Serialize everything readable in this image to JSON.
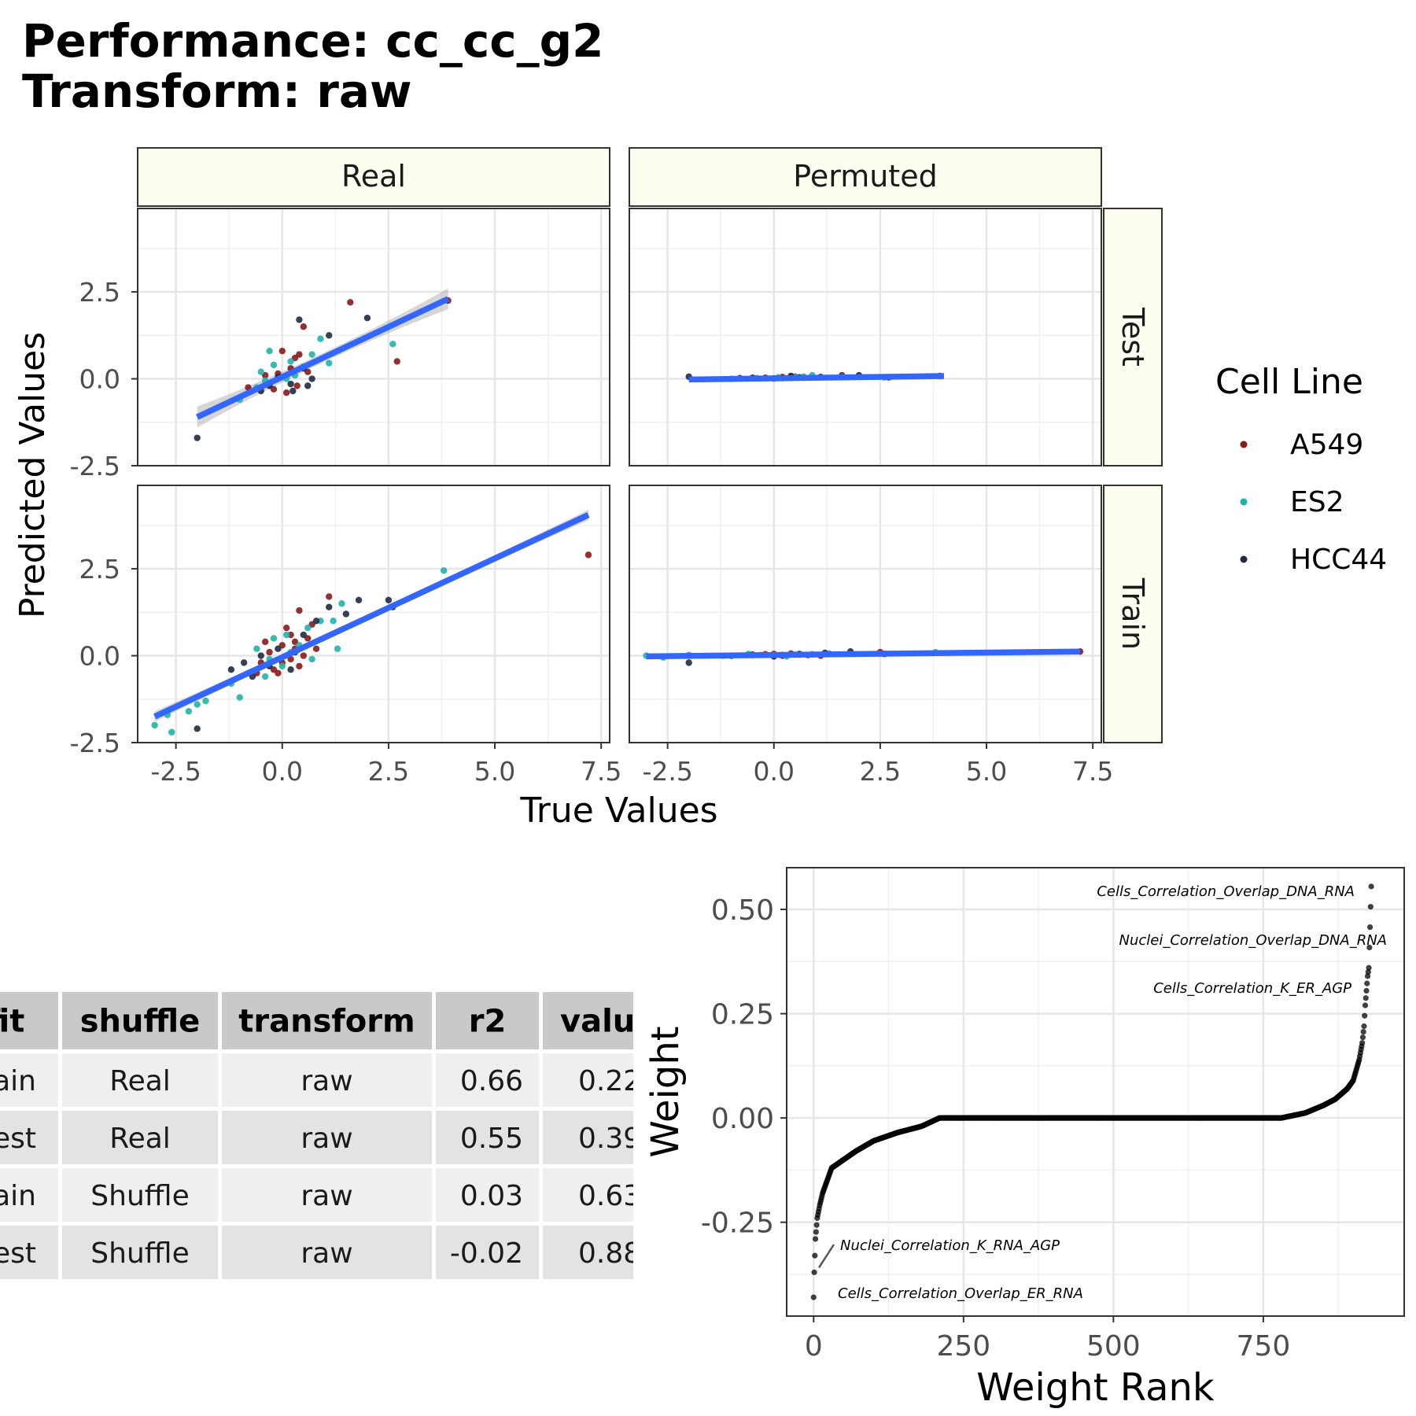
{
  "title_line1": "Performance: cc_cc_g2",
  "title_line2": "Transform: raw",
  "colors": {
    "A549": "#8B1A1A",
    "ES2": "#20B2AA",
    "HCC44": "#1F2A44",
    "fit": "#3366FF",
    "strip_bg": "#FDFDF0",
    "table_header": "#C9C9C9",
    "row_light": "#EFEFEF",
    "row_dark": "#E3E3E3"
  },
  "chart_data": [
    {
      "type": "scatter",
      "facets": {
        "cols": [
          "Real",
          "Permuted"
        ],
        "rows": [
          "Test",
          "Train"
        ]
      },
      "xlabel": "True Values",
      "ylabel": "Predicted Values",
      "xlim": [
        -3.4,
        7.7
      ],
      "ylim": [
        -2.5,
        4.9
      ],
      "x_ticks": [
        "-2.5",
        "0.0",
        "2.5",
        "5.0",
        "7.5"
      ],
      "y_ticks": [
        "-2.5",
        "0.0",
        "2.5"
      ],
      "legend": {
        "title": "Cell Line",
        "entries": [
          "A549",
          "ES2",
          "HCC44"
        ],
        "position": "right"
      },
      "fit_lines": {
        "Real_Test": {
          "x": [
            -2.0,
            3.9
          ],
          "y": [
            -1.1,
            2.3
          ],
          "se": 0.3
        },
        "Permuted_Test": {
          "x": [
            -2.0,
            4.0
          ],
          "y": [
            -0.02,
            0.08
          ],
          "se": 0.02
        },
        "Real_Train": {
          "x": [
            -3.0,
            7.2
          ],
          "y": [
            -1.75,
            4.05
          ],
          "se": 0.15
        },
        "Permuted_Train": {
          "x": [
            -3.0,
            7.2
          ],
          "y": [
            -0.02,
            0.12
          ],
          "se": 0.02
        }
      },
      "panels": {
        "Real_Test": {
          "A549": [
            [
              -0.8,
              -0.25
            ],
            [
              -0.4,
              0.1
            ],
            [
              -0.1,
              0.15
            ],
            [
              0.0,
              0.8
            ],
            [
              0.2,
              0.3
            ],
            [
              0.3,
              0.6
            ],
            [
              0.4,
              0.7
            ],
            [
              0.5,
              1.5
            ],
            [
              0.6,
              0.2
            ],
            [
              1.6,
              2.2
            ],
            [
              2.7,
              0.5
            ],
            [
              3.9,
              2.25
            ],
            [
              0.1,
              -0.4
            ],
            [
              -0.2,
              -0.3
            ],
            [
              0.35,
              -0.2
            ]
          ],
          "ES2": [
            [
              -1.0,
              -0.6
            ],
            [
              -0.5,
              0.2
            ],
            [
              -0.4,
              -0.05
            ],
            [
              -0.3,
              0.8
            ],
            [
              -0.2,
              0.4
            ],
            [
              0.1,
              0.0
            ],
            [
              0.2,
              0.5
            ],
            [
              0.5,
              0.35
            ],
            [
              0.7,
              0.7
            ],
            [
              0.9,
              1.15
            ],
            [
              1.1,
              0.45
            ],
            [
              2.6,
              1.0
            ],
            [
              -0.6,
              -0.25
            ],
            [
              0.3,
              0.1
            ]
          ],
          "HCC44": [
            [
              -2.0,
              -1.7
            ],
            [
              -0.5,
              -0.35
            ],
            [
              -0.3,
              -0.2
            ],
            [
              0.2,
              -0.15
            ],
            [
              0.4,
              1.7
            ],
            [
              0.5,
              0.3
            ],
            [
              0.6,
              -0.2
            ],
            [
              0.7,
              0.0
            ],
            [
              1.1,
              1.25
            ],
            [
              2.0,
              1.75
            ],
            [
              -0.1,
              0.05
            ],
            [
              0.25,
              -0.35
            ]
          ]
        },
        "Permuted_Test": {
          "A549": [
            [
              -0.8,
              0.02
            ],
            [
              -0.2,
              0.03
            ],
            [
              0.0,
              0.01
            ],
            [
              0.2,
              0.05
            ],
            [
              0.4,
              0.08
            ],
            [
              0.5,
              0.06
            ],
            [
              1.6,
              0.1
            ],
            [
              2.7,
              0.04
            ],
            [
              3.9,
              0.08
            ]
          ],
          "ES2": [
            [
              -1.0,
              0.0
            ],
            [
              -0.4,
              0.02
            ],
            [
              0.1,
              0.04
            ],
            [
              0.5,
              0.05
            ],
            [
              0.7,
              0.06
            ],
            [
              0.9,
              0.1
            ],
            [
              1.1,
              0.05
            ],
            [
              2.6,
              0.04
            ]
          ],
          "HCC44": [
            [
              -2.0,
              0.06
            ],
            [
              -0.5,
              0.03
            ],
            [
              0.2,
              0.02
            ],
            [
              0.4,
              0.07
            ],
            [
              0.6,
              0.04
            ],
            [
              1.1,
              0.05
            ],
            [
              2.0,
              0.1
            ]
          ]
        },
        "Real_Train": {
          "A549": [
            [
              -0.5,
              -0.2
            ],
            [
              -0.3,
              0.1
            ],
            [
              -0.2,
              -0.4
            ],
            [
              0.0,
              0.3
            ],
            [
              0.1,
              0.8
            ],
            [
              0.2,
              -0.1
            ],
            [
              0.3,
              0.4
            ],
            [
              0.4,
              1.3
            ],
            [
              0.5,
              0.0
            ],
            [
              0.6,
              0.5
            ],
            [
              0.8,
              0.2
            ],
            [
              1.1,
              1.7
            ],
            [
              -0.1,
              -0.5
            ],
            [
              0.2,
              0.6
            ],
            [
              0.4,
              -0.3
            ],
            [
              -0.4,
              0.4
            ],
            [
              0.7,
              0.9
            ],
            [
              7.2,
              2.9
            ],
            [
              0.0,
              -0.2
            ],
            [
              0.3,
              0.2
            ],
            [
              -0.6,
              -0.5
            ]
          ],
          "ES2": [
            [
              -3.0,
              -2.0
            ],
            [
              -2.7,
              -1.7
            ],
            [
              -2.6,
              -2.2
            ],
            [
              -2.2,
              -1.6
            ],
            [
              -2.0,
              -1.4
            ],
            [
              -1.8,
              -1.3
            ],
            [
              -1.2,
              -0.8
            ],
            [
              -1.0,
              -1.2
            ],
            [
              -0.8,
              -0.5
            ],
            [
              -0.6,
              0.2
            ],
            [
              -0.4,
              -0.6
            ],
            [
              -0.2,
              0.5
            ],
            [
              0.0,
              -0.3
            ],
            [
              0.2,
              0.1
            ],
            [
              0.4,
              0.3
            ],
            [
              0.6,
              0.8
            ],
            [
              0.7,
              -0.1
            ],
            [
              0.9,
              1.0
            ],
            [
              1.2,
              1.0
            ],
            [
              1.3,
              0.2
            ],
            [
              1.4,
              1.5
            ],
            [
              3.8,
              2.45
            ],
            [
              0.1,
              0.6
            ],
            [
              -0.3,
              -0.1
            ]
          ],
          "HCC44": [
            [
              -2.0,
              -2.1
            ],
            [
              -1.2,
              -0.4
            ],
            [
              -0.9,
              -0.2
            ],
            [
              -0.7,
              -0.6
            ],
            [
              -0.5,
              0.0
            ],
            [
              -0.3,
              -0.3
            ],
            [
              -0.1,
              0.2
            ],
            [
              0.2,
              -0.4
            ],
            [
              0.5,
              0.6
            ],
            [
              0.8,
              1.0
            ],
            [
              1.1,
              1.4
            ],
            [
              1.5,
              1.2
            ],
            [
              1.8,
              1.6
            ],
            [
              2.5,
              1.6
            ],
            [
              2.6,
              1.4
            ],
            [
              0.3,
              0.1
            ]
          ]
        },
        "Permuted_Train": {
          "A549": [
            [
              -0.5,
              0.02
            ],
            [
              0.0,
              0.05
            ],
            [
              0.2,
              0.0
            ],
            [
              0.4,
              0.06
            ],
            [
              0.6,
              0.03
            ],
            [
              1.1,
              0.0
            ],
            [
              2.5,
              0.1
            ],
            [
              7.2,
              0.12
            ],
            [
              -0.2,
              0.04
            ],
            [
              0.8,
              0.02
            ]
          ],
          "ES2": [
            [
              -3.0,
              0.0
            ],
            [
              -2.6,
              -0.05
            ],
            [
              -2.0,
              0.02
            ],
            [
              -1.2,
              0.0
            ],
            [
              -0.6,
              0.05
            ],
            [
              0.0,
              0.01
            ],
            [
              0.5,
              0.03
            ],
            [
              0.9,
              0.04
            ],
            [
              1.3,
              0.06
            ],
            [
              3.8,
              0.1
            ],
            [
              -0.3,
              0.02
            ],
            [
              0.3,
              -0.02
            ]
          ],
          "HCC44": [
            [
              -2.0,
              -0.2
            ],
            [
              -1.0,
              0.0
            ],
            [
              -0.5,
              0.03
            ],
            [
              0.2,
              0.02
            ],
            [
              0.6,
              0.05
            ],
            [
              1.2,
              0.08
            ],
            [
              1.8,
              0.12
            ],
            [
              2.6,
              0.05
            ],
            [
              0.0,
              -0.02
            ]
          ]
        }
      }
    },
    {
      "type": "table",
      "columns": [
        "fit",
        "shuffle",
        "transform",
        "r2",
        "value"
      ],
      "columns_visible": [
        "fit",
        "shuffle",
        "transform",
        "r2",
        "valu"
      ],
      "rows": [
        [
          "ain",
          "Real",
          "raw",
          "0.66",
          "0.22"
        ],
        [
          "est",
          "Real",
          "raw",
          "0.55",
          "0.39"
        ],
        [
          "ain",
          "Shuffle",
          "raw",
          "0.03",
          "0.63"
        ],
        [
          "est",
          "Shuffle",
          "raw",
          "-0.02",
          "0.88"
        ]
      ]
    },
    {
      "type": "scatter",
      "xlabel": "Weight Rank",
      "ylabel": "Weight",
      "xlim": [
        -45,
        985
      ],
      "ylim": [
        -0.475,
        0.6
      ],
      "x_ticks": [
        0,
        250,
        500,
        750
      ],
      "y_ticks": [
        0.5,
        0.25,
        0.0,
        -0.25
      ],
      "y_tick_labels": [
        "0.50",
        "0.25",
        "0.00",
        "-0.25"
      ],
      "n_points": 931,
      "curve_knots": [
        [
          0,
          -0.43
        ],
        [
          1,
          -0.37
        ],
        [
          3,
          -0.29
        ],
        [
          6,
          -0.24
        ],
        [
          10,
          -0.21
        ],
        [
          15,
          -0.18
        ],
        [
          20,
          -0.16
        ],
        [
          30,
          -0.12
        ],
        [
          50,
          -0.1
        ],
        [
          70,
          -0.08
        ],
        [
          100,
          -0.055
        ],
        [
          140,
          -0.035
        ],
        [
          180,
          -0.02
        ],
        [
          210,
          0.0
        ],
        [
          780,
          0.0
        ],
        [
          820,
          0.012
        ],
        [
          850,
          0.03
        ],
        [
          870,
          0.045
        ],
        [
          890,
          0.07
        ],
        [
          900,
          0.09
        ],
        [
          910,
          0.14
        ],
        [
          915,
          0.18
        ],
        [
          918,
          0.22
        ],
        [
          920,
          0.27
        ],
        [
          924,
          0.34
        ],
        [
          926,
          0.36
        ],
        [
          930,
          0.555
        ]
      ],
      "annotations": [
        {
          "label": "Cells_Correlation_Overlap_DNA_RNA",
          "x": 930,
          "y": 0.555
        },
        {
          "label": "Nuclei_Correlation_Overlap_DNA_RNA",
          "x": 926,
          "y": 0.36
        },
        {
          "label": "Cells_Correlation_K_ER_AGP",
          "x": 924,
          "y": 0.34
        },
        {
          "label": "Nuclei_Correlation_K_RNA_AGP",
          "x": 1,
          "y": -0.37
        },
        {
          "label": "Cells_Correlation_Overlap_ER_RNA",
          "x": 0,
          "y": -0.43
        }
      ]
    }
  ]
}
